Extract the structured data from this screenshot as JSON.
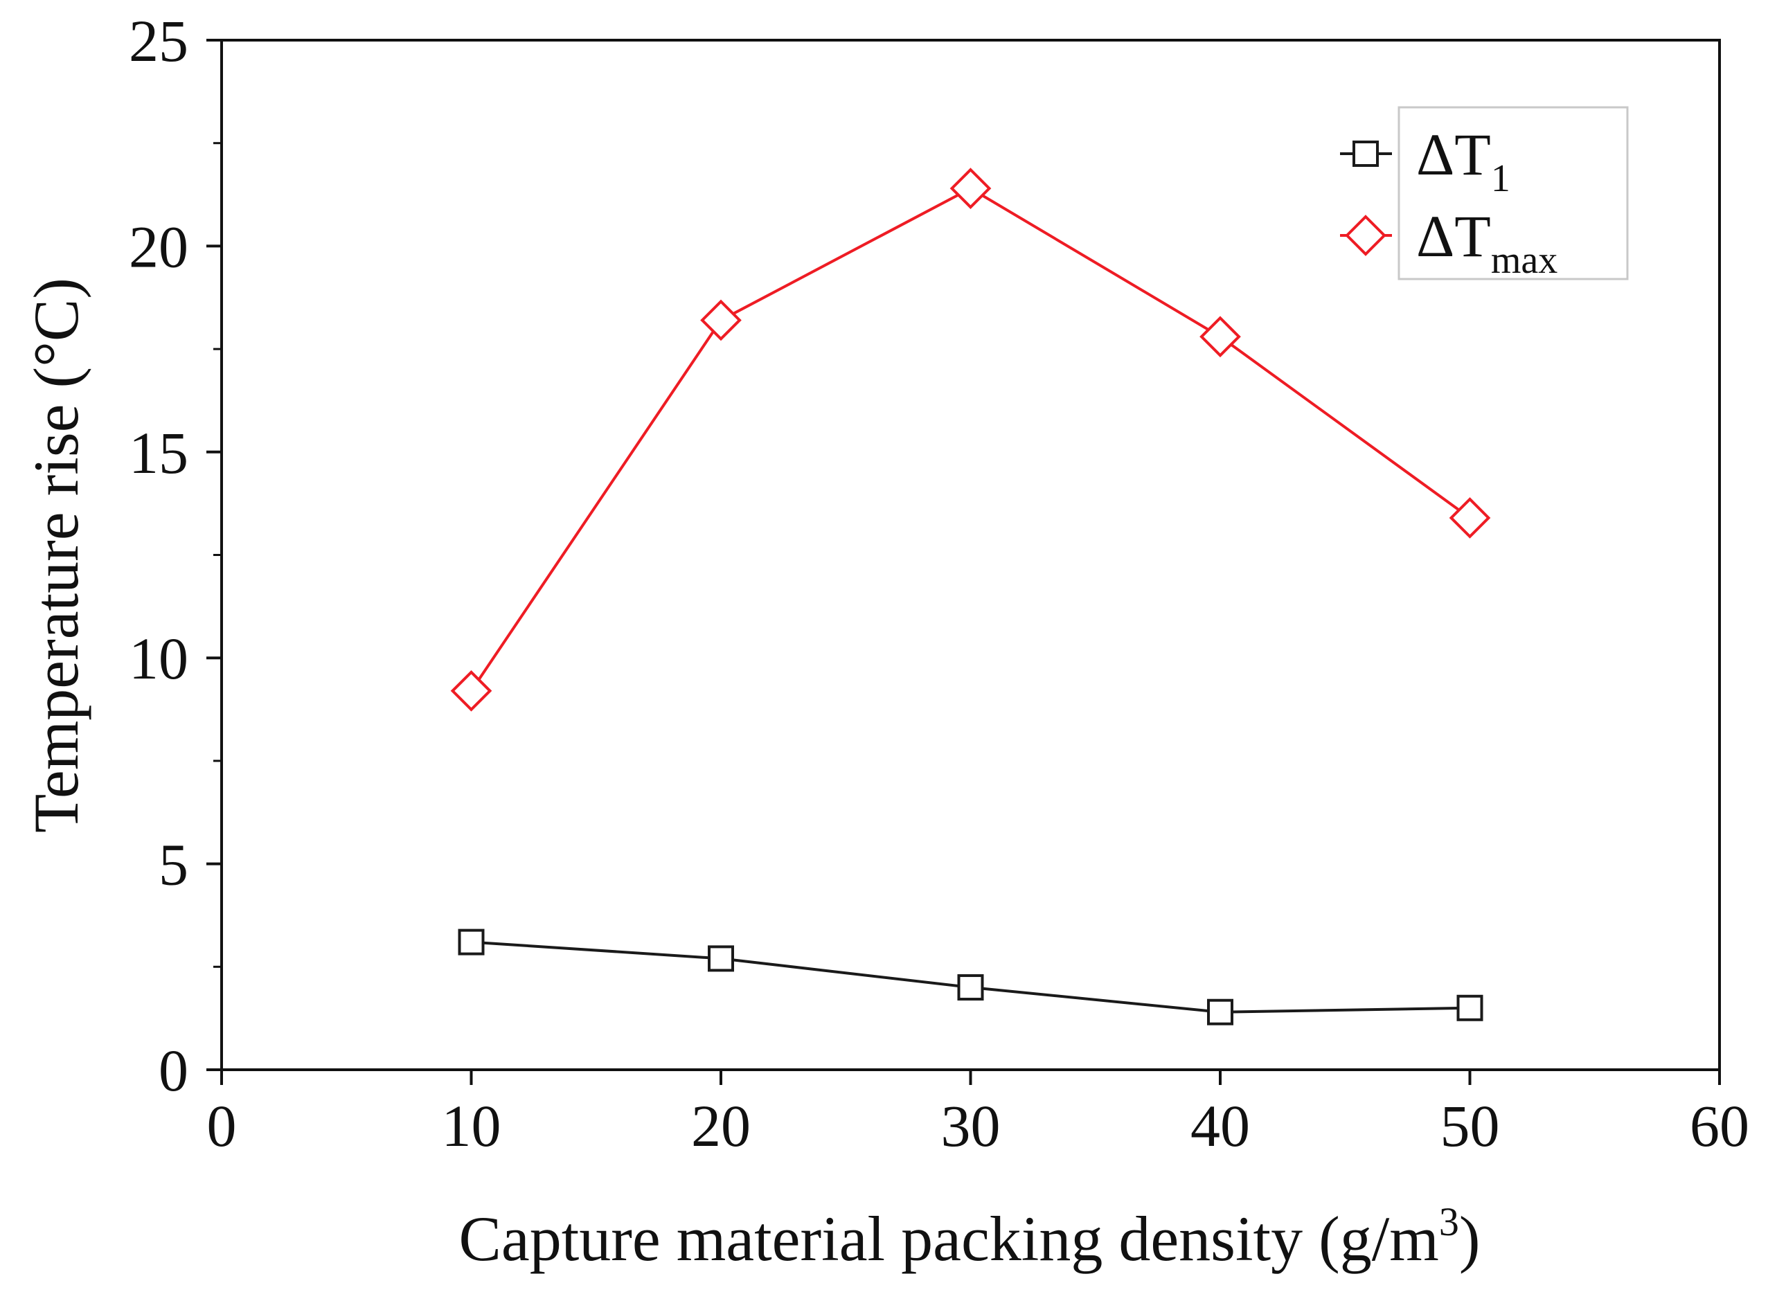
{
  "chart_data": {
    "type": "line",
    "title": "",
    "xlabel": "Capture material packing density (g/m",
    "xlabel_sup": "3",
    "xlabel_end": ")",
    "ylabel": "Temperature rise (°C)",
    "xlim": [
      0,
      60
    ],
    "ylim": [
      0,
      25
    ],
    "xticks": [
      "0",
      "10",
      "20",
      "30",
      "40",
      "50",
      "60"
    ],
    "yticks": [
      "0",
      "5",
      "10",
      "15",
      "20",
      "25"
    ],
    "grid": false,
    "legend_position": "top-right",
    "series": [
      {
        "name": "ΔT1",
        "legend_main": "ΔT",
        "legend_sub": "1",
        "marker": "square",
        "color": "#1a1a1a",
        "x": [
          10,
          20,
          30,
          40,
          50
        ],
        "y": [
          3.1,
          2.7,
          2.0,
          1.4,
          1.5
        ]
      },
      {
        "name": "ΔTmax",
        "legend_main": "ΔT",
        "legend_sub": "max",
        "marker": "diamond",
        "color": "#ee1c24",
        "x": [
          10,
          20,
          30,
          40,
          50
        ],
        "y": [
          9.2,
          18.2,
          21.4,
          17.8,
          13.4
        ]
      }
    ]
  }
}
